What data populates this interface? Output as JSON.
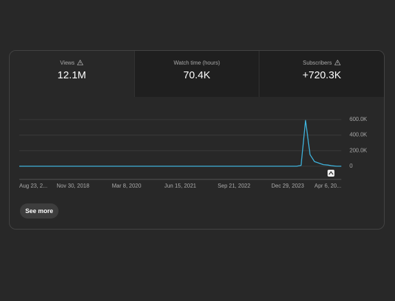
{
  "tabs": [
    {
      "label": "Views",
      "value": "12.1M"
    },
    {
      "label": "Watch time (hours)",
      "value": "70.4K"
    },
    {
      "label": "Subscribers",
      "value": "+720.3K"
    }
  ],
  "chart_data": {
    "type": "line",
    "color": "#3fb6e0",
    "grid": true,
    "categories": [
      "Aug 23, 2...",
      null,
      null,
      null,
      null,
      null,
      null,
      null,
      null,
      null,
      null,
      null,
      "Nov 30, 2018",
      null,
      null,
      null,
      null,
      null,
      null,
      null,
      null,
      null,
      null,
      null,
      "Mar 8, 2020",
      null,
      null,
      null,
      null,
      null,
      null,
      null,
      null,
      null,
      null,
      null,
      "Jun 15, 2021",
      null,
      null,
      null,
      null,
      null,
      null,
      null,
      null,
      null,
      null,
      null,
      "Sep 21, 2022",
      null,
      null,
      null,
      null,
      null,
      null,
      null,
      null,
      null,
      null,
      null,
      "Dec 29, 2023",
      null,
      null,
      null,
      null,
      null,
      null,
      null,
      null,
      null,
      null,
      null,
      "Apr 6, 20..."
    ],
    "values": [
      0,
      0,
      0,
      0,
      0,
      0,
      0,
      0,
      0,
      0,
      0,
      0,
      0,
      0,
      0,
      0,
      0,
      0,
      0,
      0,
      0,
      0,
      0,
      0,
      0,
      0,
      0,
      0,
      0,
      0,
      0,
      0,
      0,
      0,
      0,
      0,
      0,
      0,
      0,
      0,
      0,
      0,
      0,
      0,
      0,
      0,
      0,
      0,
      0,
      0,
      0,
      0,
      0,
      0,
      0,
      0,
      0,
      0,
      0,
      0,
      0,
      0,
      0,
      10000,
      590000,
      150000,
      60000,
      40000,
      20000,
      15000,
      5000,
      0,
      0
    ],
    "ylim": [
      -160000,
      600000
    ],
    "yticks": [
      {
        "value": 0,
        "label": "0"
      },
      {
        "value": 200000,
        "label": "200.0K"
      },
      {
        "value": 400000,
        "label": "400.0K"
      },
      {
        "value": 600000,
        "label": "600.0K"
      }
    ]
  },
  "button": "See more"
}
